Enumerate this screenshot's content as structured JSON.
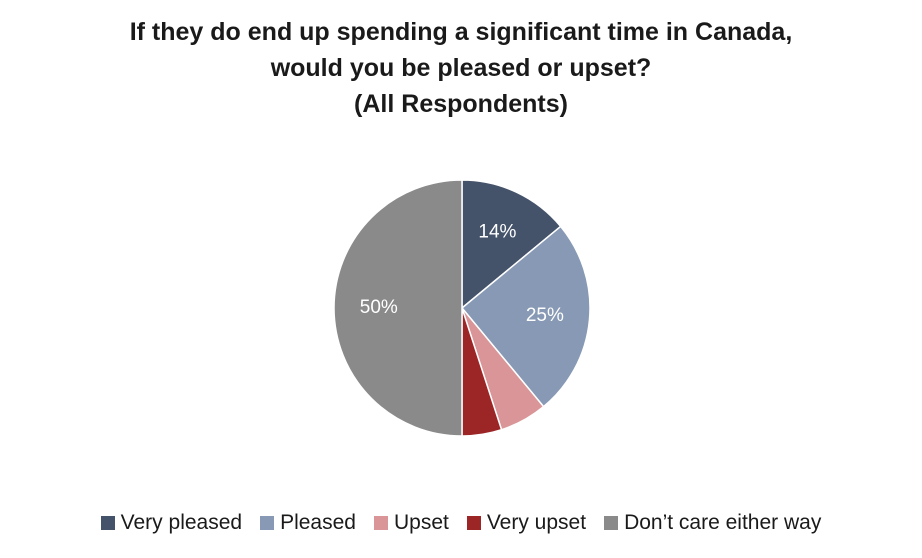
{
  "chart_data": {
    "type": "pie",
    "title_lines": [
      "If they do end up spending a significant time in Canada,",
      "would you be pleased or upset?",
      "(All Respondents)"
    ],
    "categories": [
      "Very pleased",
      "Pleased",
      "Upset",
      "Very upset",
      "Don’t care either way"
    ],
    "values": [
      14,
      25,
      6,
      5,
      50
    ],
    "data_labels": [
      "14%",
      "25%",
      "",
      "",
      "50%"
    ],
    "colors": [
      "#44526a",
      "#8799b4",
      "#d99597",
      "#9c2626",
      "#8a8a8a"
    ],
    "legend_position": "bottom"
  }
}
